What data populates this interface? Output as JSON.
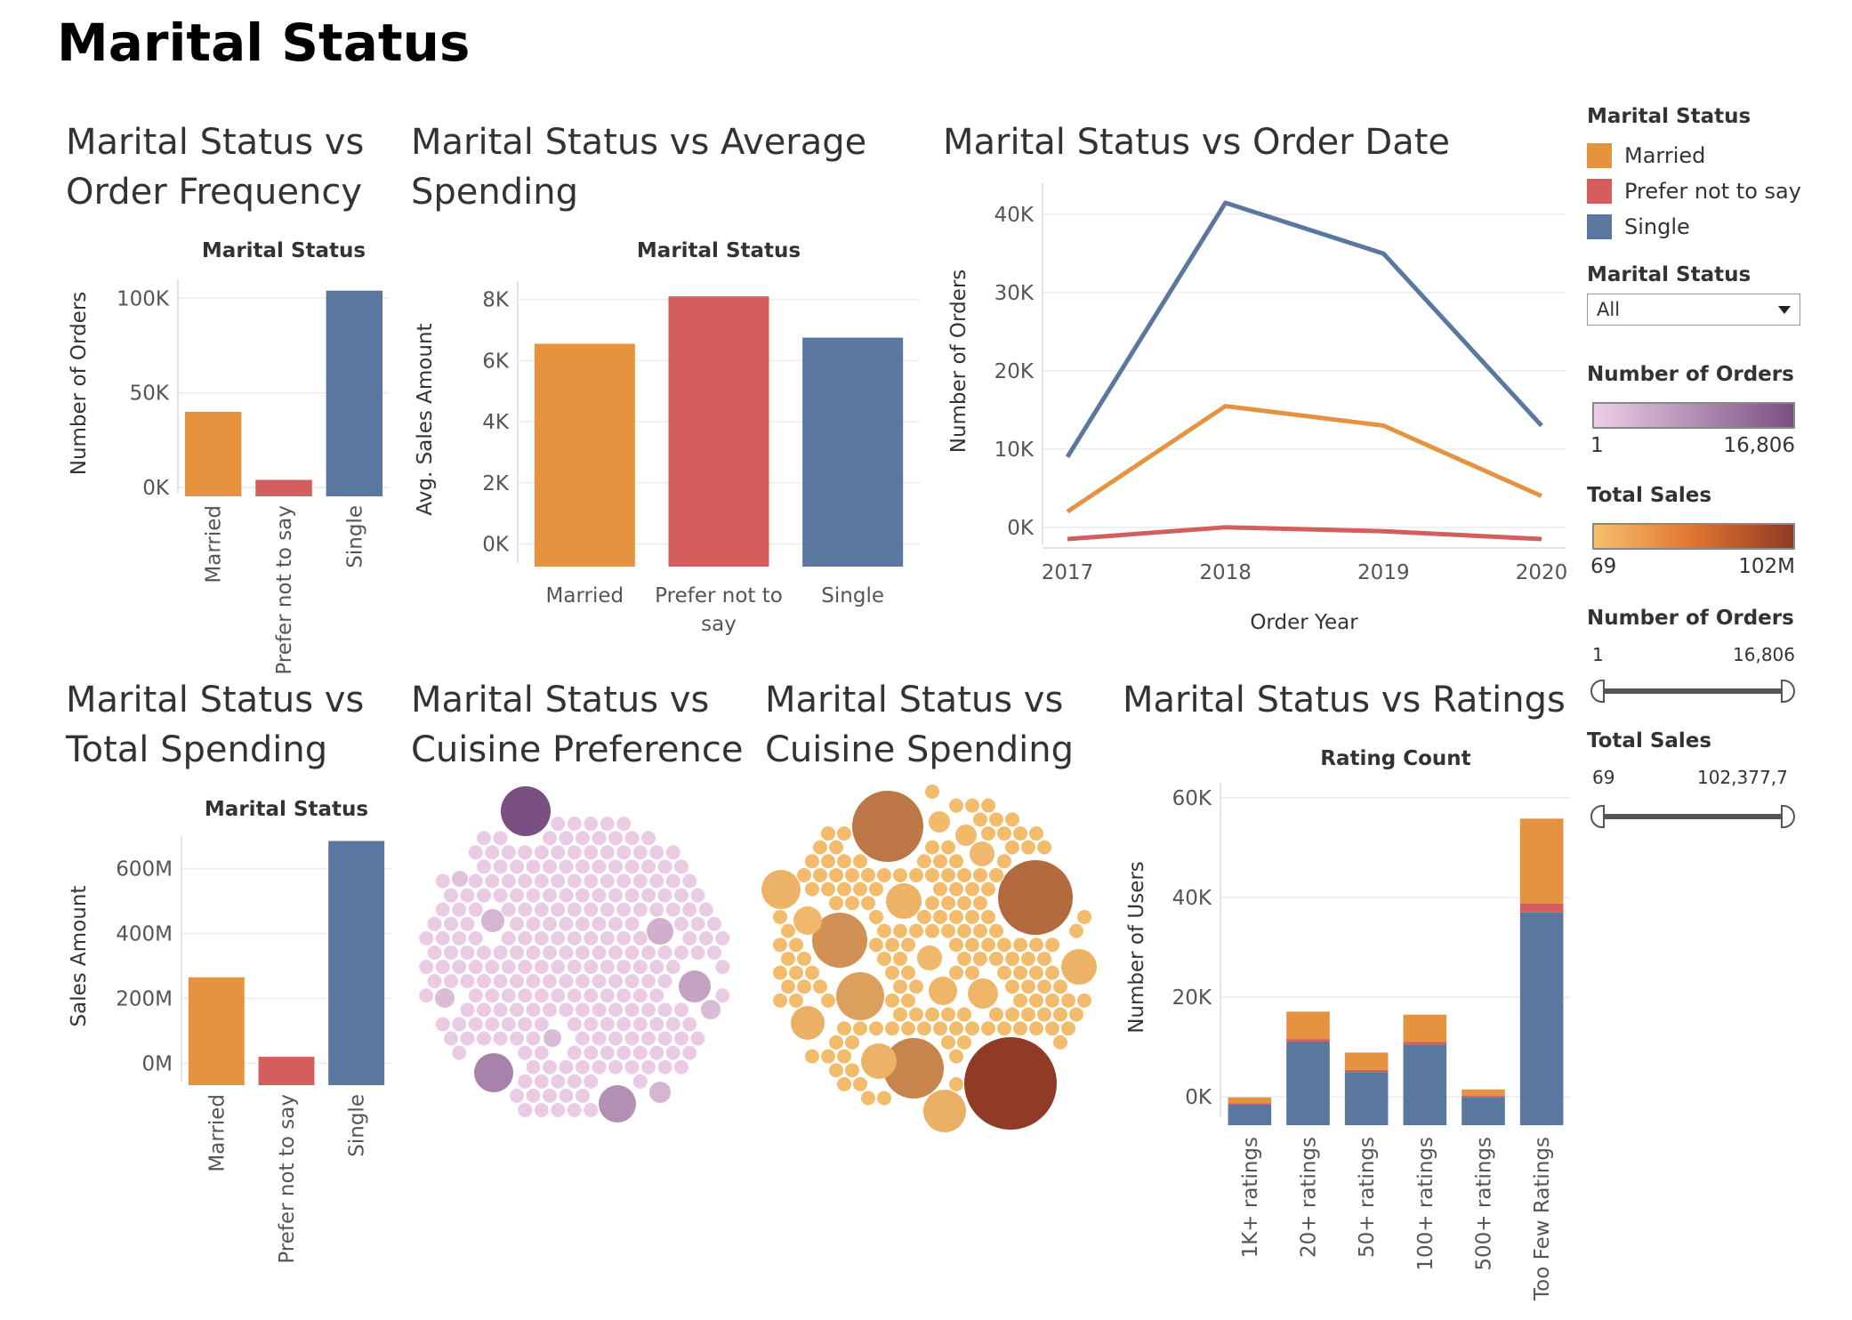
{
  "page_title": "Marital Status",
  "colors": {
    "Married": "#E69340",
    "Prefer not to say": "#D45D5D",
    "Single": "#59779F",
    "orders_ramp": [
      "#ECCFE6",
      "#7A4F82"
    ],
    "sales_ramp": [
      "#F6C06E",
      "#8F3B25"
    ]
  },
  "legend": {
    "title": "Marital Status",
    "items": [
      "Married",
      "Prefer not to say",
      "Single"
    ]
  },
  "filter": {
    "title": "Marital Status",
    "value": "All"
  },
  "orders_ramp": {
    "title": "Number of Orders",
    "min": "1",
    "max": "16,806"
  },
  "sales_ramp": {
    "title": "Total Sales",
    "min": "69",
    "max": "102M"
  },
  "orders_slider": {
    "title": "Number of Orders",
    "min": "1",
    "max": "16,806"
  },
  "sales_slider": {
    "title": "Total Sales",
    "min": "69",
    "max": "102,377,7"
  },
  "chart_data": [
    {
      "id": "frequency",
      "type": "bar",
      "title": [
        "Marital Status vs",
        "Order Frequency"
      ],
      "header": "Marital Status",
      "categories": [
        "Married",
        "Prefer not to say",
        "Single"
      ],
      "values": [
        40000,
        4000,
        104000
      ],
      "ylabel": "Number of Orders",
      "ylim": [
        0,
        110000
      ],
      "yticks": [
        0,
        50000,
        100000
      ],
      "ytick_labels": [
        "0K",
        "50K",
        "100K"
      ]
    },
    {
      "id": "average",
      "type": "bar",
      "title": [
        "Marital Status vs Average",
        "Spending"
      ],
      "header": "Marital Status",
      "categories": [
        "Married",
        "Prefer not to say",
        "Single"
      ],
      "category_labels": [
        [
          "Married"
        ],
        [
          "Prefer not to",
          "say"
        ],
        [
          "Single"
        ]
      ],
      "values": [
        6550,
        8100,
        6750
      ],
      "ylabel": "Avg. Sales Amount",
      "ylim": [
        -450,
        8600
      ],
      "yticks": [
        0,
        2000,
        4000,
        6000,
        8000
      ],
      "ytick_labels": [
        "0K",
        "2K",
        "4K",
        "6K",
        "8K"
      ]
    },
    {
      "id": "order_date",
      "type": "line",
      "title": [
        "Marital Status vs Order Date"
      ],
      "x": [
        2017,
        2018,
        2019,
        2020
      ],
      "xlabel": "Order Year",
      "ylabel": "Number of Orders",
      "ylim": [
        -1500,
        44000
      ],
      "yticks": [
        0,
        10000,
        20000,
        30000,
        40000
      ],
      "ytick_labels": [
        "0K",
        "10K",
        "20K",
        "30K",
        "40K"
      ],
      "series": [
        {
          "name": "Single",
          "values": [
            9000,
            41500,
            35000,
            13000
          ]
        },
        {
          "name": "Married",
          "values": [
            2000,
            15500,
            13000,
            4000
          ]
        },
        {
          "name": "Prefer not to say",
          "values": [
            -1500,
            0,
            -500,
            -1500
          ]
        }
      ]
    },
    {
      "id": "total",
      "type": "bar",
      "title": [
        "Marital Status vs",
        "Total Spending"
      ],
      "header": "Marital Status",
      "categories": [
        "Married",
        "Prefer not to say",
        "Single"
      ],
      "values": [
        265000000,
        20000000,
        685000000
      ],
      "ylabel": "Sales Amount",
      "ylim": [
        -40000000,
        700000000
      ],
      "yticks": [
        0,
        200000000,
        400000000,
        600000000
      ],
      "ytick_labels": [
        "0M",
        "200M",
        "400M",
        "600M"
      ]
    },
    {
      "id": "cuisine_pref",
      "type": "scatter",
      "title": [
        "Marital Status vs",
        "Cuisine Preference"
      ]
    },
    {
      "id": "cuisine_spend",
      "type": "scatter",
      "title": [
        "Marital Status vs",
        "Cuisine Spending"
      ]
    },
    {
      "id": "ratings",
      "type": "bar",
      "stacked": true,
      "title": [
        "Marital Status vs Ratings"
      ],
      "header": "Rating Count",
      "categories": [
        "1K+ ratings",
        "20+ ratings",
        "50+ ratings",
        "100+ ratings",
        "500+ ratings",
        "Too Few Ratings"
      ],
      "ylabel": "Number of Users",
      "ylim": [
        -3000,
        63000
      ],
      "yticks": [
        0,
        20000,
        40000,
        60000
      ],
      "ytick_labels": [
        "0K",
        "20K",
        "40K",
        "60K"
      ],
      "series": [
        {
          "name": "Single",
          "values": [
            -1500,
            11000,
            5000,
            10500,
            0,
            37000
          ]
        },
        {
          "name": "Prefer not to say",
          "values": [
            200,
            600,
            400,
            500,
            200,
            1800
          ]
        },
        {
          "name": "Married",
          "values": [
            1200,
            5500,
            3500,
            5500,
            1300,
            17000
          ]
        }
      ]
    }
  ]
}
